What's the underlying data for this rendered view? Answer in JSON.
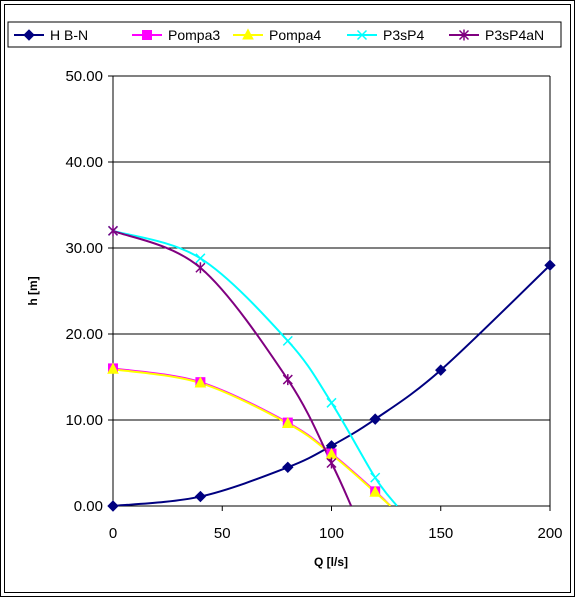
{
  "chart_data": {
    "type": "line",
    "title": "",
    "xlabel": "Q [l/s]",
    "ylabel": "h [m]",
    "xlim": [
      0,
      200
    ],
    "ylim": [
      0,
      50
    ],
    "x_ticks": [
      "0",
      "50",
      "100",
      "150",
      "200"
    ],
    "x_tick_values": [
      0,
      50,
      100,
      150,
      200
    ],
    "y_ticks": [
      "0.00",
      "10.00",
      "20.00",
      "30.00",
      "40.00",
      "50.00"
    ],
    "y_tick_values": [
      0,
      10,
      20,
      30,
      40,
      50
    ],
    "grid": "horizontal",
    "legend_position": "top",
    "series": [
      {
        "name": "H B-N",
        "color": "#000080",
        "marker": "diamond",
        "points": [
          [
            0,
            0
          ],
          [
            40,
            1.1
          ],
          [
            80,
            4.5
          ],
          [
            100,
            7.0
          ],
          [
            120,
            10.1
          ],
          [
            150,
            15.8
          ],
          [
            200,
            28.0
          ]
        ],
        "curve": [
          [
            0,
            0
          ],
          [
            40,
            1.1
          ],
          [
            80,
            4.5
          ],
          [
            100,
            7.0
          ],
          [
            120,
            10.1
          ],
          [
            150,
            15.8
          ],
          [
            200,
            28.0
          ]
        ]
      },
      {
        "name": "Pompa3",
        "color": "#FF00FF",
        "marker": "square",
        "points": [
          [
            0,
            16.0
          ],
          [
            40,
            14.4
          ],
          [
            80,
            9.7
          ],
          [
            100,
            6.1
          ],
          [
            120,
            1.7
          ]
        ],
        "curve": [
          [
            0,
            16.0
          ],
          [
            40,
            14.4
          ],
          [
            80,
            9.7
          ],
          [
            100,
            6.1
          ],
          [
            120,
            1.7
          ],
          [
            127,
            0
          ]
        ]
      },
      {
        "name": "Pompa4",
        "color": "#FFFF00",
        "marker": "triangle",
        "points": [
          [
            0,
            15.9
          ],
          [
            40,
            14.3
          ],
          [
            80,
            9.6
          ],
          [
            100,
            6.0
          ],
          [
            120,
            1.6
          ]
        ],
        "curve": [
          [
            0,
            15.9
          ],
          [
            40,
            14.3
          ],
          [
            80,
            9.6
          ],
          [
            100,
            6.0
          ],
          [
            120,
            1.6
          ],
          [
            127,
            0
          ]
        ]
      },
      {
        "name": "P3sP4",
        "color": "#00FFFF",
        "marker": "x",
        "points": [
          [
            0,
            32.0
          ],
          [
            40,
            28.8
          ],
          [
            80,
            19.2
          ],
          [
            100,
            12.0
          ],
          [
            120,
            3.3
          ]
        ],
        "curve": [
          [
            0,
            32.0
          ],
          [
            40,
            28.8
          ],
          [
            80,
            19.2
          ],
          [
            100,
            12.0
          ],
          [
            120,
            3.3
          ],
          [
            130,
            0
          ]
        ]
      },
      {
        "name": "P3sP4aN",
        "color": "#800080",
        "marker": "star",
        "points": [
          [
            0,
            32.0
          ],
          [
            40,
            27.7
          ],
          [
            80,
            14.7
          ],
          [
            100,
            5.0
          ]
        ],
        "curve": [
          [
            0,
            32.0
          ],
          [
            40,
            27.7
          ],
          [
            80,
            14.7
          ],
          [
            100,
            5.0
          ],
          [
            109,
            0
          ]
        ]
      }
    ]
  }
}
